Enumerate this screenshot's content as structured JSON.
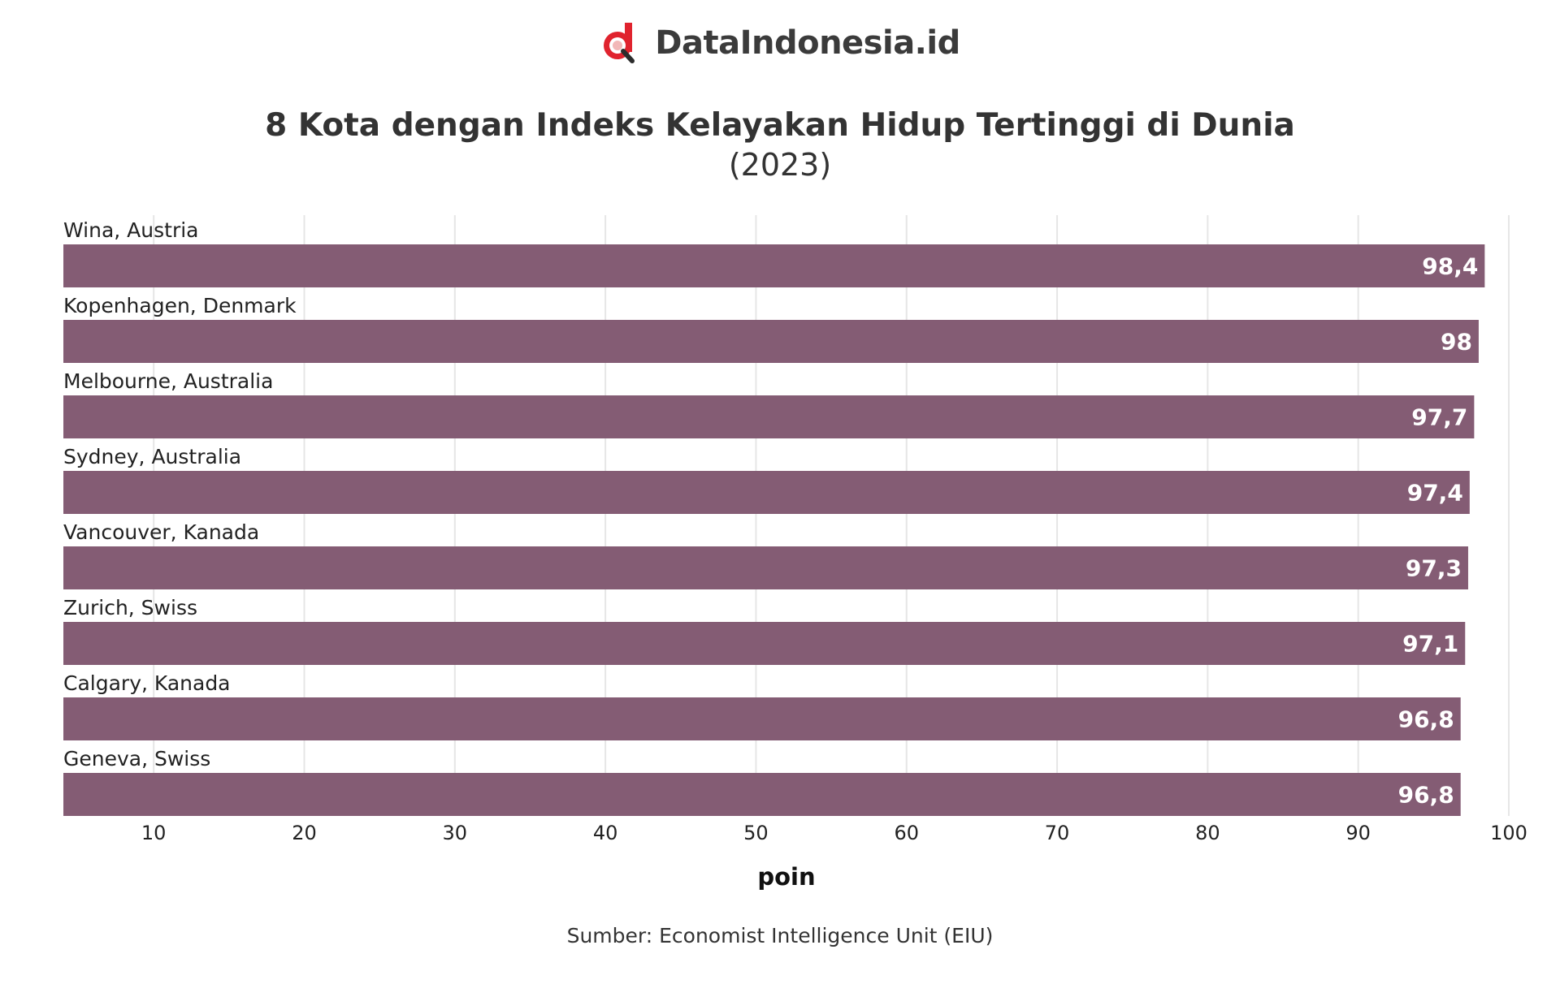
{
  "brand": {
    "name": "DataIndonesia.id",
    "logo_icon": "magnifier-d-logo-icon",
    "logo_color": "#e0232e"
  },
  "chart_data": {
    "type": "bar",
    "orientation": "horizontal",
    "title": "8 Kota dengan Indeks Kelayakan Hidup Tertinggi di Dunia",
    "subtitle": "(2023)",
    "xlabel": "poin",
    "ylabel": "",
    "categories": [
      "Wina, Austria",
      "Kopenhagen, Denmark",
      "Melbourne, Australia",
      "Sydney, Australia",
      "Vancouver, Kanada",
      "Zurich, Swiss",
      "Calgary, Kanada",
      "Geneva, Swiss"
    ],
    "values": [
      98.4,
      98,
      97.7,
      97.4,
      97.3,
      97.1,
      96.8,
      96.8
    ],
    "value_labels": [
      "98,4",
      "98",
      "97,7",
      "97,4",
      "97,3",
      "97,1",
      "96,8",
      "96,8"
    ],
    "xlim": [
      4,
      100
    ],
    "xticks": [
      10,
      20,
      30,
      40,
      50,
      60,
      70,
      80,
      90,
      100
    ],
    "grid": true,
    "bar_color": "#845c74",
    "label_color": "#ffffff"
  },
  "source": "Sumber: Economist Intelligence Unit (EIU)"
}
